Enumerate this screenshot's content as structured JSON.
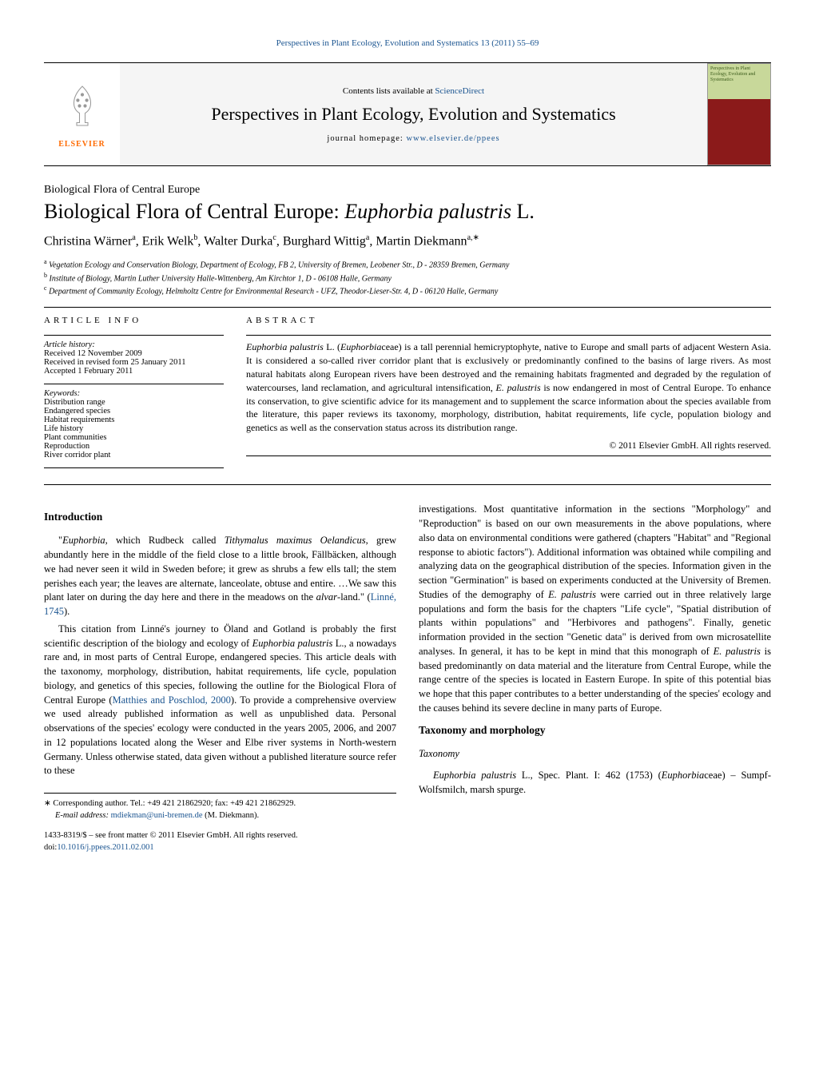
{
  "header": {
    "citation_prefix": "Perspectives in Plant Ecology, Evolution and Systematics 13 (2011) 55–69",
    "contents_prefix": "Contents lists available at ",
    "contents_link": "ScienceDirect",
    "journal_title": "Perspectives in Plant Ecology, Evolution and Systematics",
    "homepage_prefix": "journal homepage: ",
    "homepage_link": "www.elsevier.de/ppees",
    "elsevier_text": "ELSEVIER",
    "cover_label": "Perspectives in Plant Ecology, Evolution and Systematics"
  },
  "article": {
    "section_label": "Biological Flora of Central Europe",
    "title_pre": "Biological Flora of Central Europe: ",
    "title_species": "Euphorbia palustris",
    "title_post": " L.",
    "authors_html": "Christina Wärner<sup>a</sup>, Erik Welk<sup>b</sup>, Walter Durka<sup>c</sup>, Burghard Wittig<sup>a</sup>, Martin Diekmann<sup>a,∗</sup>",
    "affiliations": [
      "a Vegetation Ecology and Conservation Biology, Department of Ecology, FB 2, University of Bremen, Leobener Str., D - 28359 Bremen, Germany",
      "b Institute of Biology, Martin Luther University Halle-Wittenberg, Am Kirchtor 1, D - 06108 Halle, Germany",
      "c Department of Community Ecology, Helmholtz Centre for Environmental Research - UFZ, Theodor-Lieser-Str. 4, D - 06120 Halle, Germany"
    ]
  },
  "info": {
    "heading": "article info",
    "history_label": "Article history:",
    "received": "Received 12 November 2009",
    "revised": "Received in revised form 25 January 2011",
    "accepted": "Accepted 1 February 2011",
    "keywords_label": "Keywords:",
    "keywords": [
      "Distribution range",
      "Endangered species",
      "Habitat requirements",
      "Life history",
      "Plant communities",
      "Reproduction",
      "River corridor plant"
    ]
  },
  "abstract": {
    "heading": "abstract",
    "text": "Euphorbia palustris L. (Euphorbiaceae) is a tall perennial hemicryptophyte, native to Europe and small parts of adjacent Western Asia. It is considered a so-called river corridor plant that is exclusively or predominantly confined to the basins of large rivers. As most natural habitats along European rivers have been destroyed and the remaining habitats fragmented and degraded by the regulation of watercourses, land reclamation, and agricultural intensification, E. palustris is now endangered in most of Central Europe. To enhance its conservation, to give scientific advice for its management and to supplement the scarce information about the species available from the literature, this paper reviews its taxonomy, morphology, distribution, habitat requirements, life cycle, population biology and genetics as well as the conservation status across its distribution range.",
    "copyright": "© 2011 Elsevier GmbH. All rights reserved."
  },
  "body": {
    "intro_heading": "Introduction",
    "intro_p1": "\"Euphorbia, which Rudbeck called Tithymalus maximus Oelandicus, grew abundantly here in the middle of the field close to a little brook, Fällbäcken, although we had never seen it wild in Sweden before; it grew as shrubs a few ells tall; the stem perishes each year; the leaves are alternate, lanceolate, obtuse and entire. …We saw this plant later on during the day here and there in the meadows on the alvar-land.\" (Linné, 1745).",
    "intro_p2": "This citation from Linné's journey to Öland and Gotland is probably the first scientific description of the biology and ecology of Euphorbia palustris L., a nowadays rare and, in most parts of Central Europe, endangered species. This article deals with the taxonomy, morphology, distribution, habitat requirements, life cycle, population biology, and genetics of this species, following the outline for the Biological Flora of Central Europe (Matthies and Poschlod, 2000). To provide a comprehensive overview we used already published information as well as unpublished data. Personal observations of the species' ecology were conducted in the years 2005, 2006, and 2007 in 12 populations located along the Weser and Elbe river systems in North-western Germany. Unless otherwise stated, data given without a published literature source refer to these",
    "right_p1": "investigations. Most quantitative information in the sections \"Morphology\" and \"Reproduction\" is based on our own measurements in the above populations, where also data on environmental conditions were gathered (chapters \"Habitat\" and \"Regional response to abiotic factors\"). Additional information was obtained while compiling and analyzing data on the geographical distribution of the species. Information given in the section \"Germination\" is based on experiments conducted at the University of Bremen. Studies of the demography of E. palustris were carried out in three relatively large populations and form the basis for the chapters \"Life cycle\", \"Spatial distribution of plants within populations\" and \"Herbivores and pathogens\". Finally, genetic information provided in the section \"Genetic data\" is derived from own microsatellite analyses. In general, it has to be kept in mind that this monograph of E. palustris is based predominantly on data material and the literature from Central Europe, while the range centre of the species is located in Eastern Europe. In spite of this potential bias we hope that this paper contributes to a better understanding of the species' ecology and the causes behind its severe decline in many parts of Europe.",
    "tax_heading": "Taxonomy and morphology",
    "tax_sub": "Taxonomy",
    "tax_p1": "Euphorbia palustris L., Spec. Plant. I: 462 (1753) (Euphorbiaceae) – Sumpf-Wolfsmilch, marsh spurge."
  },
  "footnotes": {
    "corr": "∗ Corresponding author. Tel.: +49 421 21862920; fax: +49 421 21862929.",
    "email_label": "E-mail address: ",
    "email": "mdiekman@uni-bremen.de",
    "email_suffix": " (M. Diekmann).",
    "issn": "1433-8319/$ – see front matter © 2011 Elsevier GmbH. All rights reserved.",
    "doi_label": "doi:",
    "doi": "10.1016/j.ppees.2011.02.001"
  },
  "colors": {
    "link": "#1a5490",
    "elsevier_orange": "#ff6a00",
    "banner_bg": "#f5f5f5"
  }
}
